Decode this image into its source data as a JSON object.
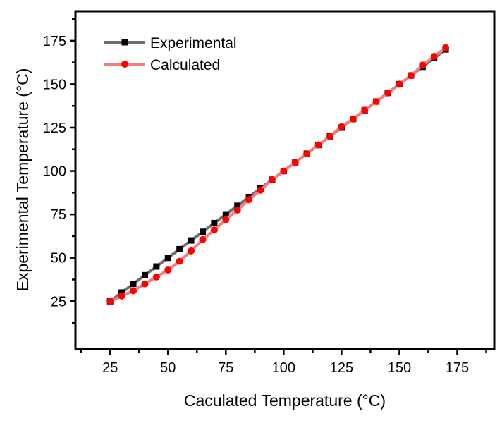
{
  "chart_data": {
    "type": "line",
    "title": "",
    "xlabel": "Caculated Temperature (°C)",
    "ylabel": "Experimental Temperature (°C)",
    "xlim": [
      10,
      191
    ],
    "ylim": [
      -2.5,
      192
    ],
    "xticks": [
      25,
      50,
      75,
      100,
      125,
      150,
      175
    ],
    "yticks": [
      25,
      50,
      75,
      100,
      125,
      150,
      175
    ],
    "grid": false,
    "legend_position": "top-left",
    "x": [
      25,
      30,
      35,
      40,
      45,
      50,
      55,
      60,
      65,
      70,
      75,
      80,
      85,
      90,
      95,
      100,
      105,
      110,
      115,
      120,
      125,
      130,
      135,
      140,
      145,
      150,
      155,
      160,
      165,
      170
    ],
    "series": [
      {
        "name": "Experimental",
        "line_color": "#6e6e6e",
        "marker_color": "#000000",
        "marker": "square",
        "values": [
          25,
          30,
          35,
          40,
          45,
          50,
          55,
          60,
          65,
          70,
          75,
          80,
          85,
          90,
          95,
          100,
          105,
          110,
          115,
          120,
          125,
          130,
          135,
          140,
          145,
          150,
          155,
          160,
          165,
          170
        ]
      },
      {
        "name": "Calculated",
        "line_color": "#f08080",
        "marker_color": "#ff0000",
        "marker": "circle",
        "values": [
          25,
          28,
          31,
          35,
          39,
          43,
          48,
          54,
          60.5,
          66,
          72,
          77.5,
          83.5,
          89,
          95,
          100,
          105,
          110,
          115,
          120,
          125.5,
          130,
          135,
          140,
          145,
          150,
          155,
          161,
          166,
          171
        ]
      }
    ]
  }
}
